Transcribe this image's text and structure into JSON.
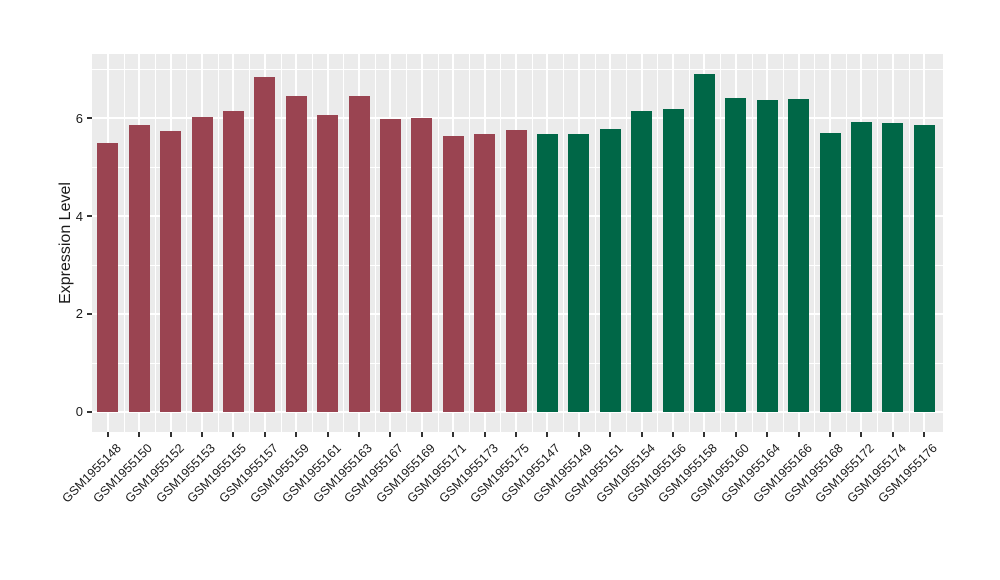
{
  "chart_data": {
    "type": "bar",
    "title": "",
    "xlabel": "",
    "ylabel": "Expression Level",
    "yticks": [
      0,
      2,
      4,
      6
    ],
    "yminor": [
      1,
      3,
      5,
      7
    ],
    "ylim": [
      0,
      7.3
    ],
    "grid": true,
    "legend": false,
    "categories": [
      "GSM1955148",
      "GSM1955150",
      "GSM1955152",
      "GSM1955153",
      "GSM1955155",
      "GSM1955157",
      "GSM1955159",
      "GSM1955161",
      "GSM1955163",
      "GSM1955167",
      "GSM1955169",
      "GSM1955171",
      "GSM1955173",
      "GSM1955175",
      "GSM1955147",
      "GSM1955149",
      "GSM1955151",
      "GSM1955154",
      "GSM1955156",
      "GSM1955158",
      "GSM1955160",
      "GSM1955164",
      "GSM1955166",
      "GSM1955168",
      "GSM1955172",
      "GSM1955174",
      "GSM1955176"
    ],
    "values": [
      5.5,
      5.86,
      5.75,
      6.03,
      6.15,
      6.84,
      6.46,
      6.07,
      6.46,
      5.99,
      6.01,
      5.64,
      5.69,
      5.76,
      5.67,
      5.67,
      5.78,
      6.15,
      6.19,
      6.91,
      6.41,
      6.37,
      6.4,
      5.7,
      5.93,
      5.9,
      5.87
    ],
    "groups": [
      "group1",
      "group1",
      "group1",
      "group1",
      "group1",
      "group1",
      "group1",
      "group1",
      "group1",
      "group1",
      "group1",
      "group1",
      "group1",
      "group1",
      "group2",
      "group2",
      "group2",
      "group2",
      "group2",
      "group2",
      "group2",
      "group2",
      "group2",
      "group2",
      "group2",
      "group2",
      "group2"
    ],
    "group_colors": {
      "group1": "#9A4451",
      "group2": "#006747"
    }
  },
  "style": {
    "page_bg": "#FFFFFF",
    "panel_bg": "#EBEBEB",
    "grid_color": "#FFFFFF",
    "tick_color": "#333333",
    "axis_text_color": "#1A1A1A"
  }
}
